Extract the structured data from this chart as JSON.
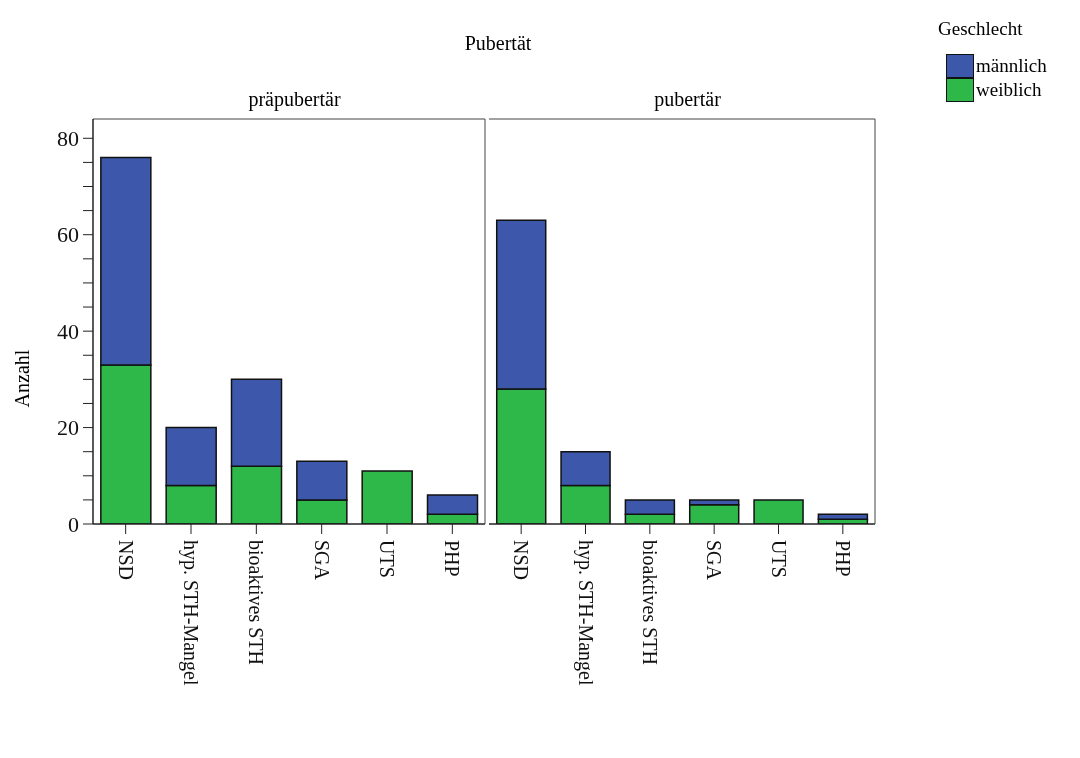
{
  "chart_data": [
    {
      "type": "bar",
      "title": "präpubertär",
      "annotations": [
        "Pubertät"
      ],
      "ylabel": "Anzahl",
      "legend_title": "Geschlecht",
      "legend": "right",
      "stacked": true,
      "categories": [
        "NSD",
        "hyp. STH-Mangel",
        "bioaktives STH",
        "SGA",
        "UTS",
        "PHP"
      ],
      "series": [
        {
          "name": "weiblich",
          "color": "#2eb84a",
          "values": [
            33,
            8,
            12,
            5,
            11,
            2
          ]
        },
        {
          "name": "männlich",
          "color": "#3d58aa",
          "values": [
            43,
            12,
            18,
            8,
            0,
            4
          ]
        }
      ],
      "ylim": [
        0,
        84
      ],
      "yticks": [
        0,
        {
          "value": 5,
          "label": null
        },
        {
          "value": 10,
          "label": null
        },
        {
          "value": 15,
          "label": null
        },
        20,
        {
          "value": 25,
          "label": null
        },
        {
          "value": 30,
          "label": null
        },
        {
          "value": 35,
          "label": null
        },
        40,
        {
          "value": 45,
          "label": null
        },
        {
          "value": 50,
          "label": null
        },
        {
          "value": 55,
          "label": null
        },
        60,
        {
          "value": 65,
          "label": null
        },
        {
          "value": 70,
          "label": null
        },
        {
          "value": 75,
          "label": null
        },
        80
      ]
    },
    {
      "type": "bar",
      "title": "pubertär",
      "stacked": true,
      "tick_labels": "x",
      "categories": [
        "NSD",
        "hyp. STH-Mangel",
        "bioaktives STH",
        "SGA",
        "UTS",
        "PHP"
      ],
      "series": [
        {
          "color": "#2eb84a",
          "values": [
            28,
            8,
            2,
            4,
            5,
            1
          ]
        },
        {
          "color": "#3d58aa",
          "values": [
            35,
            7,
            3,
            1,
            0,
            1
          ]
        }
      ],
      "ylim": [
        0,
        84
      ]
    }
  ]
}
